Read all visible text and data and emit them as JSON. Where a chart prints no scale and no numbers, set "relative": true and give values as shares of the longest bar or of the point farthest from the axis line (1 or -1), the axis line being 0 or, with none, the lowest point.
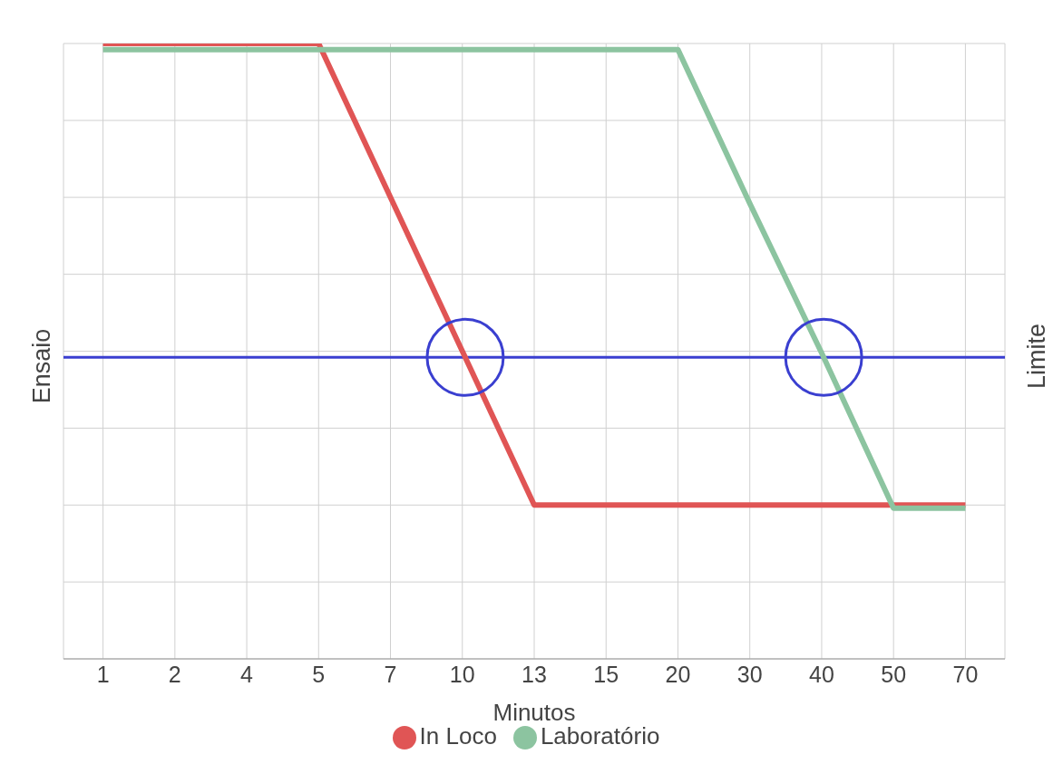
{
  "chart_data": {
    "type": "line",
    "relative": true,
    "xlabel": "Minutos",
    "ylabel": "Ensaio",
    "y2label": "Limite",
    "categories": [
      "1",
      "2",
      "4",
      "5",
      "7",
      "10",
      "13",
      "15",
      "20",
      "30",
      "40",
      "50",
      "70"
    ],
    "series": [
      {
        "name": "In Loco",
        "color": "#e05555",
        "values": [
          1,
          1,
          1,
          1,
          0.75,
          0.5,
          0.25,
          0.25,
          0.25,
          0.25,
          0.25,
          0.25,
          0.25
        ]
      },
      {
        "name": "Laboratório",
        "color": "#8cc4a0",
        "values": [
          0.99,
          0.99,
          0.99,
          0.99,
          0.99,
          0.99,
          0.99,
          0.99,
          0.99,
          0.74,
          0.497,
          0.245,
          0.245
        ]
      }
    ],
    "ref_lines": [
      {
        "axis": "y",
        "value": 0.49,
        "label": null,
        "color": "#3a3fd0"
      }
    ],
    "grid": true,
    "legend": "bottom",
    "marker": "none",
    "line_style": "solid"
  }
}
